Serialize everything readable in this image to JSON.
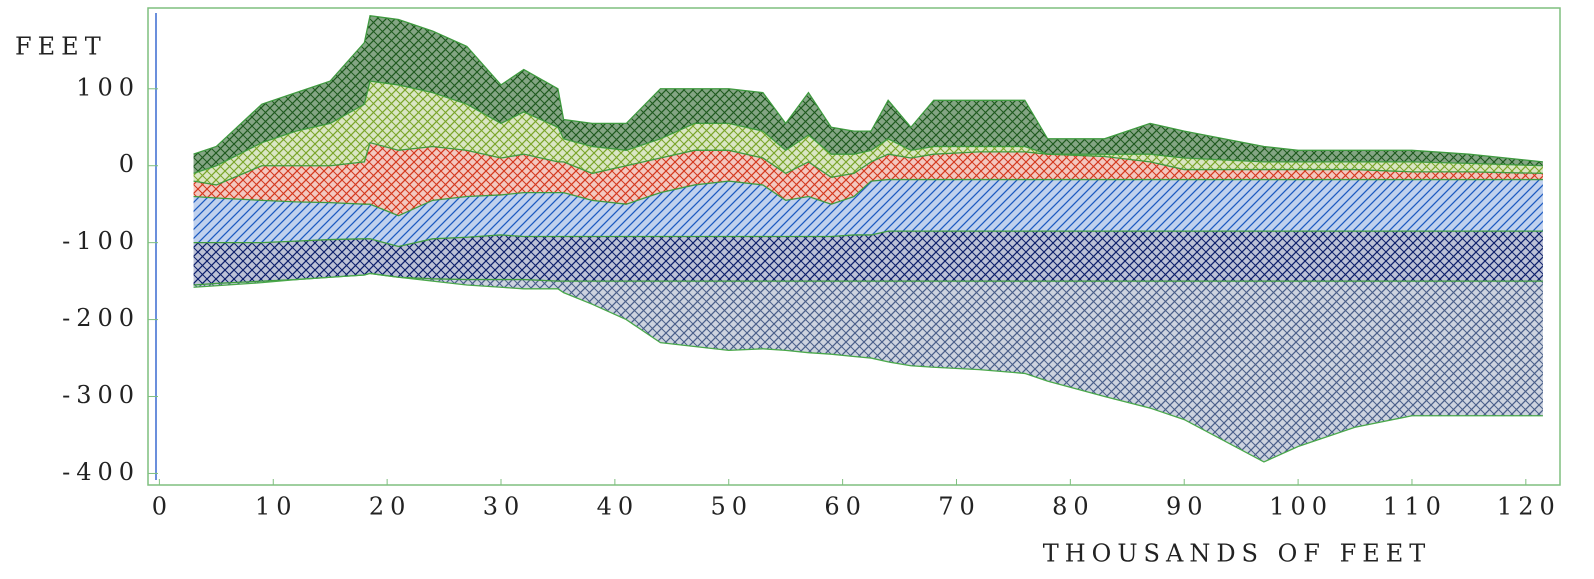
{
  "chart_data": {
    "type": "area",
    "ylabel": "FEET",
    "xlabel": "THOUSANDS OF FEET",
    "xlim": [
      -1,
      123
    ],
    "ylim": [
      -415,
      205
    ],
    "xticks": [
      0,
      10,
      20,
      30,
      40,
      50,
      60,
      70,
      80,
      90,
      100,
      110,
      120
    ],
    "yticks": [
      -400,
      -300,
      -200,
      -100,
      0,
      100
    ],
    "grid": false,
    "x": [
      3,
      5,
      9,
      12,
      15,
      18,
      18.5,
      21,
      24,
      27,
      30,
      32,
      35,
      35.5,
      38,
      41,
      44,
      47,
      50,
      53,
      55,
      57,
      59,
      61,
      62.5,
      64,
      66,
      68,
      72,
      76,
      78,
      83,
      87,
      90,
      97,
      100,
      105,
      110,
      115,
      121.5
    ],
    "series": [
      {
        "color": "#1f5a1f",
        "values": [
          15,
          25,
          80,
          95,
          110,
          160,
          195,
          190,
          175,
          155,
          105,
          125,
          100,
          60,
          55,
          55,
          100,
          100,
          100,
          95,
          55,
          95,
          50,
          45,
          45,
          85,
          50,
          85,
          85,
          85,
          35,
          35,
          55,
          45,
          25,
          20,
          20,
          20,
          15,
          5
        ]
      },
      {
        "color": "#7aa52a",
        "values": [
          -10,
          0,
          30,
          45,
          55,
          80,
          110,
          105,
          95,
          80,
          55,
          70,
          50,
          35,
          25,
          20,
          35,
          55,
          55,
          45,
          20,
          40,
          15,
          15,
          20,
          35,
          20,
          25,
          25,
          25,
          15,
          15,
          15,
          10,
          5,
          5,
          5,
          5,
          3,
          0
        ]
      },
      {
        "color": "#d4381e",
        "values": [
          -20,
          -25,
          0,
          0,
          0,
          5,
          30,
          20,
          25,
          20,
          10,
          15,
          5,
          5,
          -10,
          0,
          10,
          20,
          20,
          10,
          -10,
          5,
          -15,
          -10,
          5,
          15,
          10,
          15,
          18,
          18,
          15,
          12,
          5,
          -5,
          -5,
          -5,
          -5,
          -8,
          -8,
          -10
        ]
      },
      {
        "color": "#1c5ac0",
        "values": [
          -40,
          -42,
          -45,
          -47,
          -48,
          -50,
          -50,
          -65,
          -45,
          -40,
          -38,
          -35,
          -35,
          -35,
          -45,
          -50,
          -35,
          -25,
          -20,
          -25,
          -45,
          -40,
          -50,
          -40,
          -20,
          -18,
          -18,
          -18,
          -18,
          -18,
          -18,
          -18,
          -18,
          -18,
          -18,
          -18,
          -18,
          -18,
          -18,
          -18
        ]
      },
      {
        "color": "#0d1f6b",
        "values": [
          -100,
          -100,
          -100,
          -98,
          -96,
          -95,
          -95,
          -105,
          -95,
          -93,
          -90,
          -92,
          -92,
          -92,
          -92,
          -92,
          -92,
          -92,
          -92,
          -92,
          -92,
          -92,
          -92,
          -90,
          -90,
          -85,
          -85,
          -85,
          -85,
          -85,
          -85,
          -85,
          -85,
          -85,
          -85,
          -85,
          -85,
          -85,
          -85,
          -85
        ]
      },
      {
        "color": "#4a5f8a",
        "values": [
          -155,
          -153,
          -150,
          -148,
          -145,
          -142,
          -140,
          -145,
          -147,
          -148,
          -148,
          -148,
          -150,
          -150,
          -150,
          -150,
          -150,
          -150,
          -150,
          -150,
          -150,
          -150,
          -150,
          -150,
          -150,
          -150,
          -150,
          -150,
          -150,
          -150,
          -150,
          -150,
          -150,
          -150,
          -150,
          -150,
          -150,
          -150,
          -150,
          -150
        ]
      },
      {
        "color": "#4aa84a",
        "values": [
          -158,
          -156,
          -152,
          -148,
          -145,
          -142,
          -140,
          -145,
          -150,
          -155,
          -158,
          -160,
          -160,
          -165,
          -180,
          -200,
          -230,
          -235,
          -240,
          -238,
          -240,
          -243,
          -245,
          -248,
          -250,
          -255,
          -260,
          -262,
          -265,
          -270,
          -280,
          -300,
          -315,
          -330,
          -385,
          -365,
          -340,
          -325,
          -325,
          -325
        ]
      }
    ]
  }
}
